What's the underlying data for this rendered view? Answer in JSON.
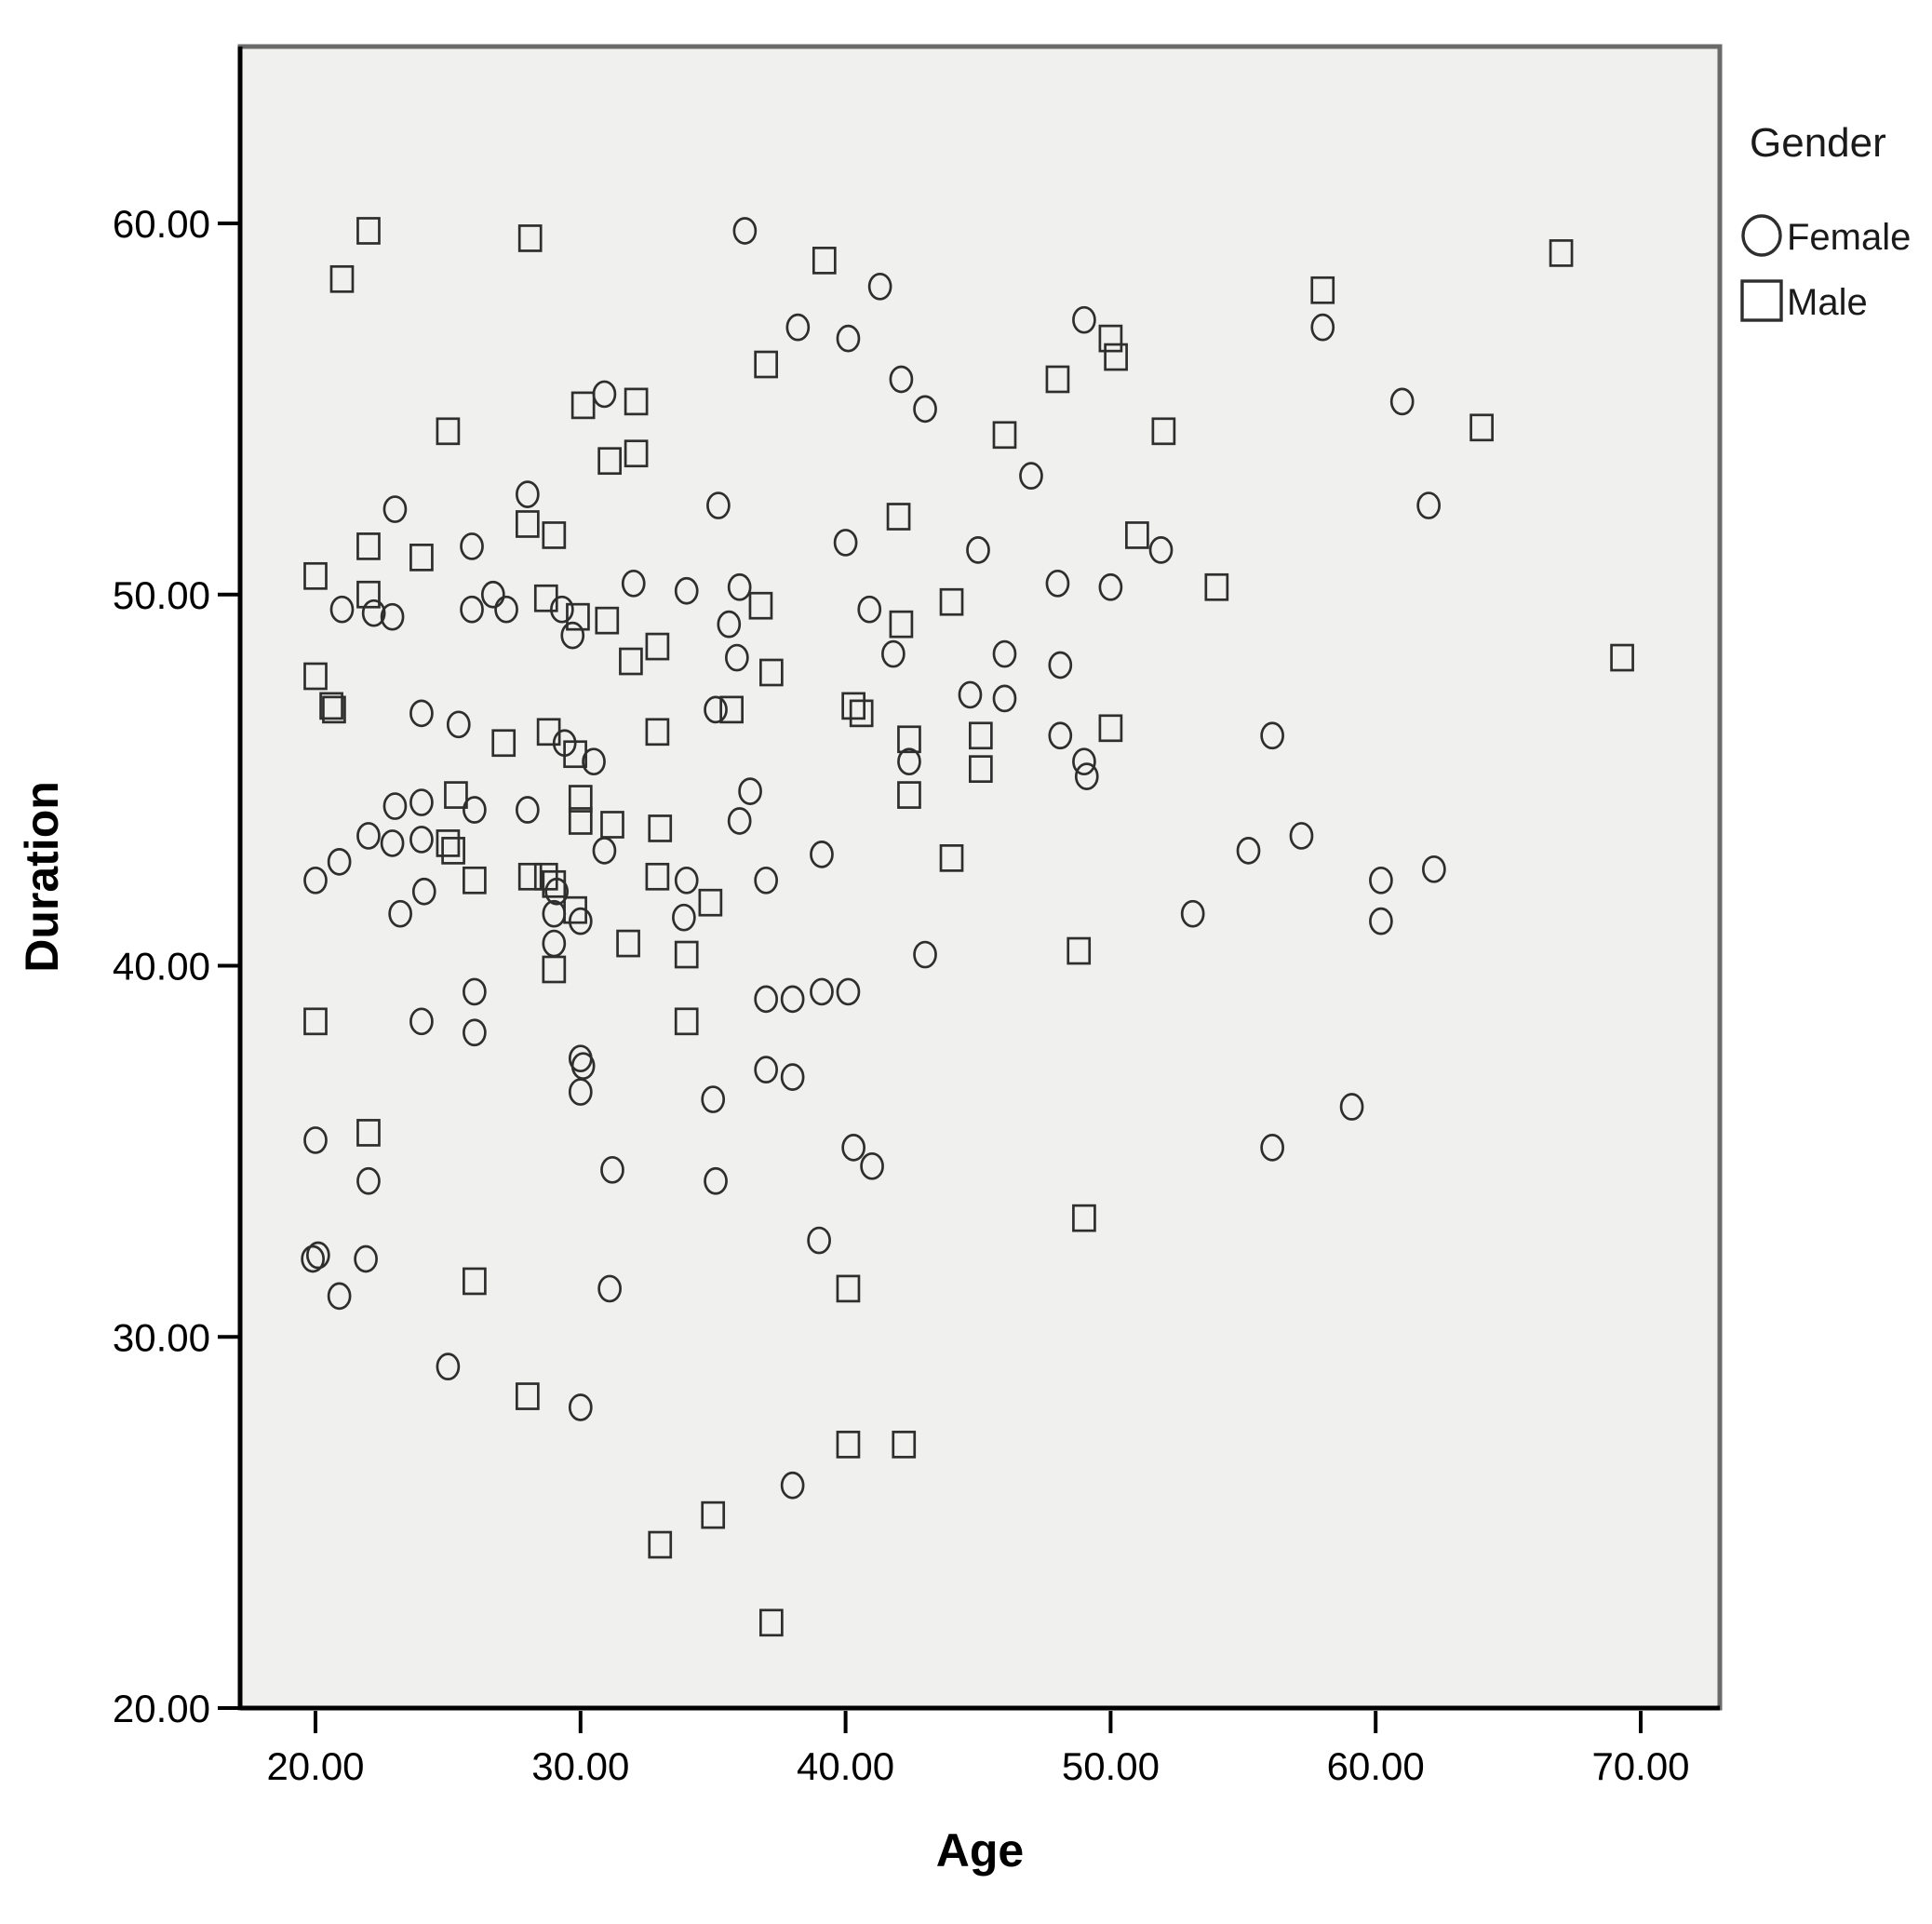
{
  "chart_data": {
    "type": "scatter",
    "title": "",
    "xlabel": "Age",
    "ylabel": "Duration",
    "grid": false,
    "xlim": [
      17.3,
      73.0
    ],
    "ylim": [
      20.0,
      64.6
    ],
    "x_ticks": {
      "values": [
        20,
        30,
        40,
        50,
        60,
        70
      ],
      "labels": [
        "20.00",
        "30.00",
        "40.00",
        "50.00",
        "60.00",
        "70.00"
      ]
    },
    "y_ticks": {
      "values": [
        20,
        30,
        40,
        50,
        60
      ],
      "labels": [
        "20.00",
        "30.00",
        "40.00",
        "50.00",
        "60.00"
      ]
    },
    "legend": {
      "title": "Gender",
      "position": "outside-top-right",
      "entries": [
        {
          "label": "Female",
          "marker": "circle"
        },
        {
          "label": "Male",
          "marker": "square"
        }
      ]
    },
    "series": [
      {
        "name": "Female",
        "marker": "circle",
        "points": [
          [
            36.2,
            59.8
          ],
          [
            41.3,
            58.3
          ],
          [
            58,
            57.2
          ],
          [
            49,
            57.4
          ],
          [
            38.2,
            57.2
          ],
          [
            40.1,
            56.9
          ],
          [
            30.9,
            55.4
          ],
          [
            42.1,
            55.8
          ],
          [
            43,
            55
          ],
          [
            61,
            55.2
          ],
          [
            35.2,
            52.4
          ],
          [
            23,
            52.3
          ],
          [
            28,
            52.7
          ],
          [
            25.9,
            51.3
          ],
          [
            62,
            52.4
          ],
          [
            47,
            53.2
          ],
          [
            40,
            51.4
          ],
          [
            45,
            51.2
          ],
          [
            51.9,
            51.2
          ],
          [
            21,
            49.6
          ],
          [
            22.2,
            49.5
          ],
          [
            22.9,
            49.4
          ],
          [
            25.9,
            49.6
          ],
          [
            26.7,
            50
          ],
          [
            27.2,
            49.6
          ],
          [
            29.3,
            49.6
          ],
          [
            29.7,
            48.9
          ],
          [
            32,
            50.3
          ],
          [
            34,
            50.1
          ],
          [
            36,
            50.2
          ],
          [
            40.9,
            49.6
          ],
          [
            41.8,
            48.4
          ],
          [
            35.6,
            49.2
          ],
          [
            35.9,
            48.3
          ],
          [
            48,
            50.3
          ],
          [
            50,
            50.2
          ],
          [
            44.7,
            47.3
          ],
          [
            46,
            47.2
          ],
          [
            48.1,
            48.1
          ],
          [
            46,
            48.4
          ],
          [
            48.1,
            46.2
          ],
          [
            49,
            45.5
          ],
          [
            49.1,
            45.1
          ],
          [
            56.1,
            46.2
          ],
          [
            36,
            43.9
          ],
          [
            39.1,
            43
          ],
          [
            37,
            42.3
          ],
          [
            34,
            42.3
          ],
          [
            33.9,
            41.3
          ],
          [
            24,
            46.8
          ],
          [
            25.4,
            46.5
          ],
          [
            29.4,
            46
          ],
          [
            30.5,
            45.5
          ],
          [
            35.1,
            46.9
          ],
          [
            42.4,
            45.5
          ],
          [
            23,
            44.3
          ],
          [
            24,
            44.4
          ],
          [
            26,
            44.2
          ],
          [
            28,
            44.2
          ],
          [
            36.4,
            44.7
          ],
          [
            22,
            43.5
          ],
          [
            22.9,
            43.3
          ],
          [
            24,
            43.4
          ],
          [
            30.9,
            43.1
          ],
          [
            20.9,
            42.8
          ],
          [
            20,
            42.3
          ],
          [
            24.1,
            42
          ],
          [
            29.1,
            42
          ],
          [
            29,
            41.4
          ],
          [
            30,
            41.2
          ],
          [
            43,
            40.3
          ],
          [
            29,
            40.6
          ],
          [
            53.1,
            41.4
          ],
          [
            55.2,
            43.1
          ],
          [
            57.2,
            43.5
          ],
          [
            60.2,
            42.3
          ],
          [
            62.2,
            42.6
          ],
          [
            60.2,
            41.2
          ],
          [
            23.2,
            41.4
          ],
          [
            37,
            39.1
          ],
          [
            38,
            39.1
          ],
          [
            39.1,
            39.3
          ],
          [
            40.1,
            39.3
          ],
          [
            26,
            39.3
          ],
          [
            26,
            38.2
          ],
          [
            24,
            38.5
          ],
          [
            37,
            37.2
          ],
          [
            38,
            37
          ],
          [
            30,
            37.5
          ],
          [
            30.1,
            37.3
          ],
          [
            30,
            36.6
          ],
          [
            35,
            36.4
          ],
          [
            59.1,
            36.2
          ],
          [
            56.1,
            35.1
          ],
          [
            20,
            35.3
          ],
          [
            31.2,
            34.5
          ],
          [
            35.1,
            34.2
          ],
          [
            40.3,
            35.1
          ],
          [
            41,
            34.6
          ],
          [
            22,
            34.2
          ],
          [
            19.9,
            32.1
          ],
          [
            20.1,
            32.2
          ],
          [
            21.9,
            32.1
          ],
          [
            20.9,
            31.1
          ],
          [
            31.1,
            31.3
          ],
          [
            39,
            32.6
          ],
          [
            25,
            29.2
          ],
          [
            30,
            28.1
          ],
          [
            38,
            26
          ]
        ]
      },
      {
        "name": "Male",
        "marker": "square",
        "points": [
          [
            22,
            59.8
          ],
          [
            21,
            58.5
          ],
          [
            28.1,
            59.6
          ],
          [
            39.2,
            59
          ],
          [
            67,
            59.2
          ],
          [
            58,
            58.2
          ],
          [
            37,
            56.2
          ],
          [
            50,
            56.9
          ],
          [
            50.2,
            56.4
          ],
          [
            48,
            55.8
          ],
          [
            30.1,
            55.1
          ],
          [
            32.1,
            55.2
          ],
          [
            25,
            54.4
          ],
          [
            31.1,
            53.6
          ],
          [
            32.1,
            53.8
          ],
          [
            52,
            54.4
          ],
          [
            46,
            54.3
          ],
          [
            64,
            54.5
          ],
          [
            22,
            51.3
          ],
          [
            24,
            51
          ],
          [
            28,
            51.9
          ],
          [
            29,
            51.6
          ],
          [
            42,
            52.1
          ],
          [
            51,
            51.6
          ],
          [
            20,
            50.5
          ],
          [
            22,
            50
          ],
          [
            54,
            50.2
          ],
          [
            44,
            49.8
          ],
          [
            36.8,
            49.7
          ],
          [
            28.7,
            49.9
          ],
          [
            29.9,
            49.4
          ],
          [
            31,
            49.3
          ],
          [
            32.9,
            48.6
          ],
          [
            37.2,
            47.9
          ],
          [
            31.9,
            48.2
          ],
          [
            42.1,
            49.2
          ],
          [
            69.3,
            48.3
          ],
          [
            20,
            47.8
          ],
          [
            20.6,
            47
          ],
          [
            20.7,
            46.9
          ],
          [
            50,
            46.4
          ],
          [
            45.1,
            46.2
          ],
          [
            45.1,
            45.3
          ],
          [
            28.8,
            46.3
          ],
          [
            27.1,
            46
          ],
          [
            32.9,
            46.3
          ],
          [
            35.7,
            46.9
          ],
          [
            40.3,
            47
          ],
          [
            40.6,
            46.8
          ],
          [
            42.4,
            46.1
          ],
          [
            42.4,
            44.6
          ],
          [
            29.8,
            45.7
          ],
          [
            25.3,
            44.6
          ],
          [
            30,
            44.5
          ],
          [
            30,
            43.9
          ],
          [
            31.2,
            43.8
          ],
          [
            33,
            43.7
          ],
          [
            32.9,
            42.4
          ],
          [
            25,
            43.3
          ],
          [
            25.2,
            43.1
          ],
          [
            44,
            42.9
          ],
          [
            26,
            42.3
          ],
          [
            28.1,
            42.4
          ],
          [
            28.7,
            42.4
          ],
          [
            29,
            42.2
          ],
          [
            34.9,
            41.7
          ],
          [
            29.8,
            41.5
          ],
          [
            48.8,
            40.4
          ],
          [
            34,
            40.3
          ],
          [
            31.8,
            40.6
          ],
          [
            29,
            39.9
          ],
          [
            34,
            38.5
          ],
          [
            20,
            38.5
          ],
          [
            22,
            35.5
          ],
          [
            26,
            31.5
          ],
          [
            40.1,
            31.3
          ],
          [
            49,
            33.2
          ],
          [
            28,
            28.4
          ],
          [
            40.1,
            27.1
          ],
          [
            42.2,
            27.1
          ],
          [
            35,
            25.2
          ],
          [
            33,
            24.4
          ],
          [
            37.2,
            22.3
          ]
        ]
      }
    ]
  },
  "colors": {
    "page_bg": "#ffffff",
    "plot_bg": "#f0f0ee",
    "frame": "#6a6a6a",
    "axis": "#000000",
    "marker_stroke": "#2e2e2e",
    "text": "#000000"
  }
}
